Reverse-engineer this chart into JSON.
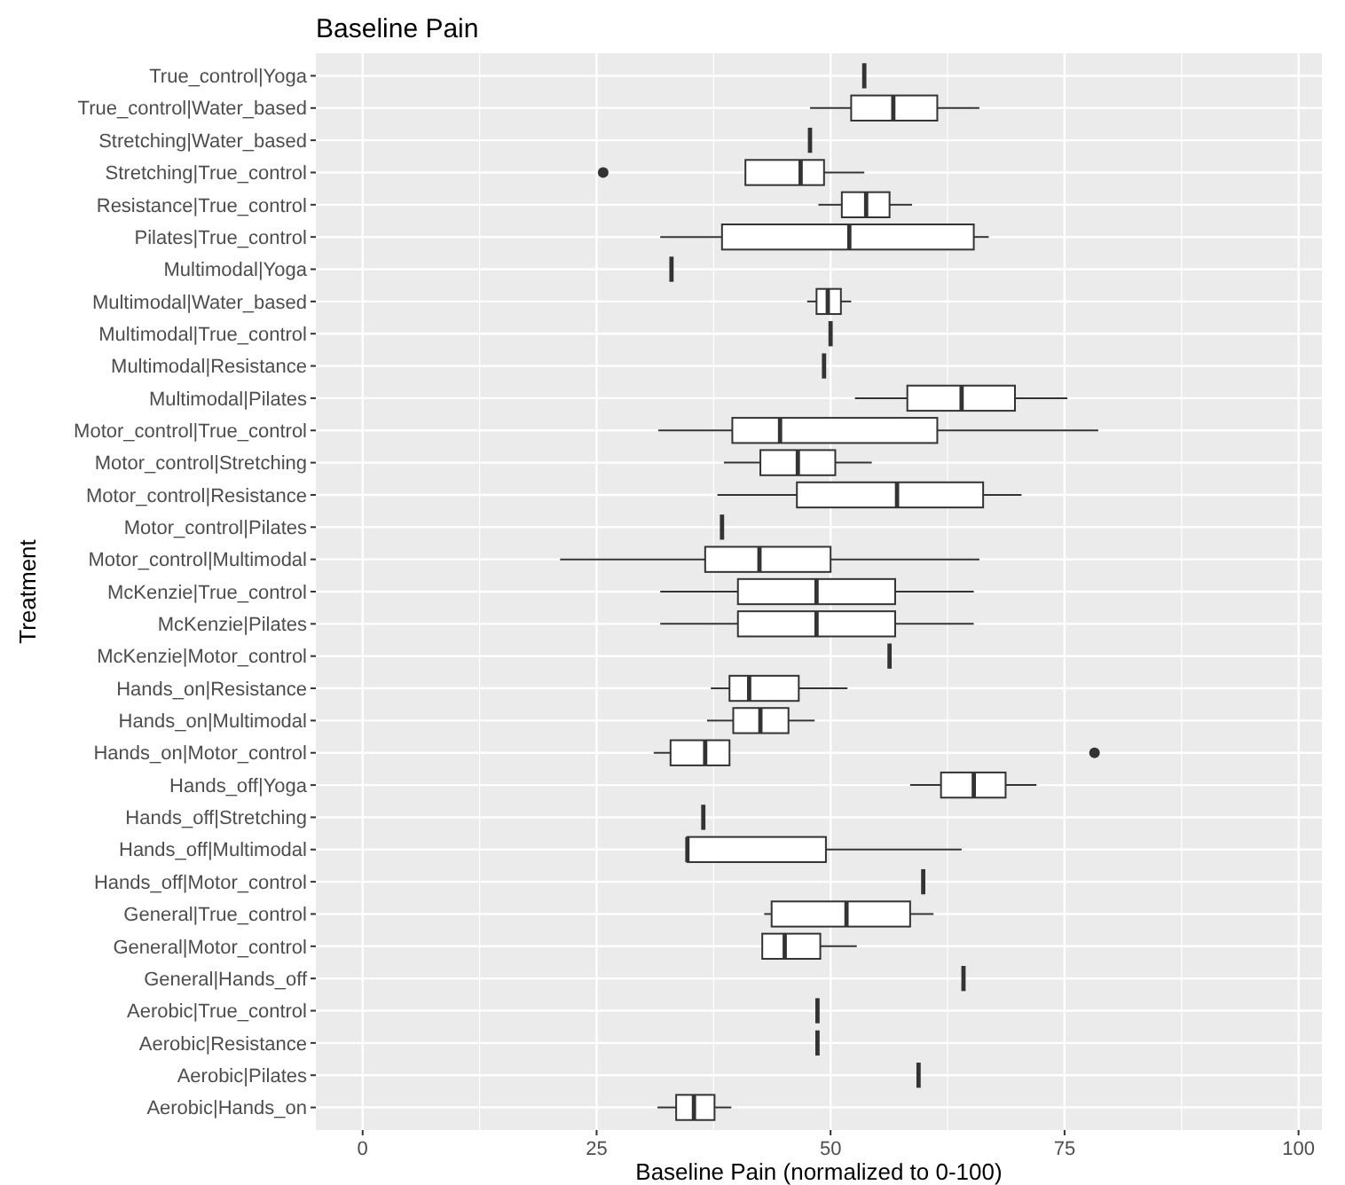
{
  "chart_data": {
    "type": "box",
    "title": "Baseline Pain",
    "xlabel": "Baseline Pain (normalized to 0-100)",
    "ylabel": "Treatment",
    "orientation": "horizontal",
    "grid": true,
    "xlim": [
      -5,
      102.5
    ],
    "xticks": [
      0,
      25,
      50,
      75,
      100
    ],
    "categories": [
      "True_control|Yoga",
      "True_control|Water_based",
      "Stretching|Water_based",
      "Stretching|True_control",
      "Resistance|True_control",
      "Pilates|True_control",
      "Multimodal|Yoga",
      "Multimodal|Water_based",
      "Multimodal|True_control",
      "Multimodal|Resistance",
      "Multimodal|Pilates",
      "Motor_control|True_control",
      "Motor_control|Stretching",
      "Motor_control|Resistance",
      "Motor_control|Pilates",
      "Motor_control|Multimodal",
      "McKenzie|True_control",
      "McKenzie|Pilates",
      "McKenzie|Motor_control",
      "Hands_on|Resistance",
      "Hands_on|Multimodal",
      "Hands_on|Motor_control",
      "Hands_off|Yoga",
      "Hands_off|Stretching",
      "Hands_off|Multimodal",
      "Hands_off|Motor_control",
      "General|True_control",
      "General|Motor_control",
      "General|Hands_off",
      "Aerobic|True_control",
      "Aerobic|Resistance",
      "Aerobic|Pilates",
      "Aerobic|Hands_on"
    ],
    "boxes": [
      {
        "low": 53.6,
        "q1": 53.6,
        "median": 53.6,
        "q3": 53.6,
        "high": 53.6
      },
      {
        "low": 47.8,
        "q1": 52.2,
        "median": 56.7,
        "q3": 61.4,
        "high": 65.9
      },
      {
        "low": 47.8,
        "q1": 47.8,
        "median": 47.8,
        "q3": 47.8,
        "high": 47.8
      },
      {
        "low": 40.9,
        "q1": 40.9,
        "median": 46.8,
        "q3": 49.3,
        "high": 53.6,
        "outliers": [
          25.7
        ]
      },
      {
        "low": 48.7,
        "q1": 51.2,
        "median": 53.8,
        "q3": 56.3,
        "high": 58.7
      },
      {
        "low": 31.8,
        "q1": 38.4,
        "median": 52.0,
        "q3": 65.3,
        "high": 66.9
      },
      {
        "low": 33.0,
        "q1": 33.0,
        "median": 33.0,
        "q3": 33.0,
        "high": 33.0
      },
      {
        "low": 47.5,
        "q1": 48.5,
        "median": 49.7,
        "q3": 51.1,
        "high": 52.2
      },
      {
        "low": 50.0,
        "q1": 50.0,
        "median": 50.0,
        "q3": 50.0,
        "high": 50.0
      },
      {
        "low": 49.3,
        "q1": 49.3,
        "median": 49.3,
        "q3": 49.3,
        "high": 49.3
      },
      {
        "low": 52.6,
        "q1": 58.2,
        "median": 64.0,
        "q3": 69.7,
        "high": 75.3
      },
      {
        "low": 31.6,
        "q1": 39.5,
        "median": 44.6,
        "q3": 61.4,
        "high": 78.6
      },
      {
        "low": 38.6,
        "q1": 42.5,
        "median": 46.5,
        "q3": 50.5,
        "high": 54.4
      },
      {
        "low": 37.9,
        "q1": 46.4,
        "median": 57.1,
        "q3": 66.3,
        "high": 70.4
      },
      {
        "low": 38.4,
        "q1": 38.4,
        "median": 38.4,
        "q3": 38.4,
        "high": 38.4
      },
      {
        "low": 21.1,
        "q1": 36.6,
        "median": 42.4,
        "q3": 50.0,
        "high": 65.9
      },
      {
        "low": 31.8,
        "q1": 40.1,
        "median": 48.5,
        "q3": 56.9,
        "high": 65.3
      },
      {
        "low": 31.8,
        "q1": 40.1,
        "median": 48.5,
        "q3": 56.9,
        "high": 65.3
      },
      {
        "low": 56.3,
        "q1": 56.3,
        "median": 56.3,
        "q3": 56.3,
        "high": 56.3
      },
      {
        "low": 37.2,
        "q1": 39.2,
        "median": 41.3,
        "q3": 46.6,
        "high": 51.8
      },
      {
        "low": 36.8,
        "q1": 39.6,
        "median": 42.5,
        "q3": 45.5,
        "high": 48.3
      },
      {
        "low": 31.1,
        "q1": 32.9,
        "median": 36.6,
        "q3": 39.2,
        "high": 39.2,
        "outliers": [
          78.2
        ]
      },
      {
        "low": 58.5,
        "q1": 61.8,
        "median": 65.3,
        "q3": 68.7,
        "high": 72.0
      },
      {
        "low": 36.4,
        "q1": 36.4,
        "median": 36.4,
        "q3": 36.4,
        "high": 36.4
      },
      {
        "low": 34.7,
        "q1": 34.7,
        "median": 34.7,
        "q3": 49.5,
        "high": 64.0
      },
      {
        "low": 59.9,
        "q1": 59.9,
        "median": 59.9,
        "q3": 59.9,
        "high": 59.9
      },
      {
        "low": 42.9,
        "q1": 43.7,
        "median": 51.7,
        "q3": 58.5,
        "high": 61.0
      },
      {
        "low": 42.7,
        "q1": 42.7,
        "median": 45.1,
        "q3": 48.9,
        "high": 52.8
      },
      {
        "low": 64.2,
        "q1": 64.2,
        "median": 64.2,
        "q3": 64.2,
        "high": 64.2
      },
      {
        "low": 48.6,
        "q1": 48.6,
        "median": 48.6,
        "q3": 48.6,
        "high": 48.6
      },
      {
        "low": 48.6,
        "q1": 48.6,
        "median": 48.6,
        "q3": 48.6,
        "high": 48.6
      },
      {
        "low": 59.4,
        "q1": 59.4,
        "median": 59.4,
        "q3": 59.4,
        "high": 59.4
      },
      {
        "low": 31.5,
        "q1": 33.5,
        "median": 35.4,
        "q3": 37.6,
        "high": 39.4
      }
    ]
  }
}
